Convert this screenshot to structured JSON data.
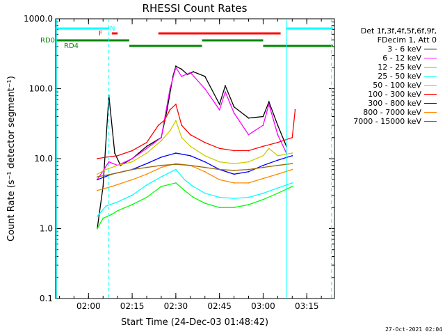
{
  "chart_data": {
    "type": "line",
    "title": "RHESSI Count Rates",
    "xlabel": "Start Time (24-Dec-03 01:48:42)",
    "ylabel": "Count Rate (s⁻¹ detector segment⁻¹)",
    "yscale": "log",
    "ylim": [
      0.1,
      1000
    ],
    "xlim": [
      "01:48:42",
      "03:24:30"
    ],
    "x_ticks": [
      "02:00",
      "02:15",
      "02:30",
      "02:45",
      "03:00",
      "03:15"
    ],
    "y_ticks": [
      "0.1",
      "1.0",
      "10.0",
      "100.0",
      "1000.0"
    ],
    "legend_position": "right, outside plot",
    "legend_header": [
      "Det 1f,3f,4f,5f,6f,9f,",
      "FDecim 1, Att 0"
    ],
    "series": [
      {
        "name": "3 - 6 keV",
        "color": "#000000",
        "x": [
          "02:03",
          "02:05",
          "02:07",
          "02:09",
          "02:11",
          "02:15",
          "02:20",
          "02:25",
          "02:27",
          "02:29",
          "02:30",
          "02:32",
          "02:34",
          "02:36",
          "02:40",
          "02:45",
          "02:47",
          "02:50",
          "02:55",
          "03:00",
          "03:02",
          "03:05",
          "03:08"
        ],
        "y": [
          1.0,
          4,
          80,
          12,
          8,
          10,
          15,
          20,
          50,
          150,
          210,
          190,
          160,
          175,
          150,
          60,
          110,
          55,
          38,
          40,
          65,
          30,
          15
        ]
      },
      {
        "name": "6 - 12 keV",
        "color": "#ff00ff",
        "x": [
          "02:03",
          "02:07",
          "02:10",
          "02:15",
          "02:20",
          "02:25",
          "02:28",
          "02:30",
          "02:32",
          "02:35",
          "02:40",
          "02:45",
          "02:47",
          "02:50",
          "02:55",
          "03:00",
          "03:02",
          "03:05",
          "03:08"
        ],
        "y": [
          5,
          9,
          8,
          10,
          14,
          20,
          100,
          200,
          150,
          170,
          100,
          50,
          90,
          45,
          22,
          30,
          60,
          22,
          12
        ]
      },
      {
        "name": "12 - 25 keV",
        "color": "#00ff00",
        "x": [
          "02:03",
          "02:05",
          "02:08",
          "02:10",
          "02:15",
          "02:20",
          "02:25",
          "02:30",
          "02:33",
          "02:36",
          "02:40",
          "02:45",
          "02:50",
          "02:55",
          "03:00",
          "03:05",
          "03:10"
        ],
        "y": [
          1.0,
          1.4,
          1.6,
          1.8,
          2.2,
          2.8,
          4,
          4.5,
          3.5,
          2.8,
          2.3,
          2.0,
          2.0,
          2.2,
          2.6,
          3.2,
          4
        ]
      },
      {
        "name": "25 - 50 keV",
        "color": "#00ffff",
        "x": [
          "02:03",
          "02:06",
          "02:10",
          "02:15",
          "02:20",
          "02:25",
          "02:30",
          "02:33",
          "02:36",
          "02:40",
          "02:45",
          "02:50",
          "02:55",
          "03:00",
          "03:05",
          "03:10"
        ],
        "y": [
          1.5,
          2.1,
          2.4,
          3,
          4.2,
          5.5,
          7,
          5,
          4,
          3.2,
          2.8,
          2.7,
          2.8,
          3.2,
          3.8,
          4.5
        ]
      },
      {
        "name": "50 - 100 keV",
        "color": "#cccc00",
        "x": [
          "02:03",
          "02:06",
          "02:10",
          "02:15",
          "02:20",
          "02:25",
          "02:28",
          "02:30",
          "02:32",
          "02:35",
          "02:40",
          "02:45",
          "02:50",
          "02:55",
          "03:00",
          "03:02",
          "03:05",
          "03:10"
        ],
        "y": [
          6,
          7,
          8,
          9,
          12,
          18,
          25,
          35,
          20,
          15,
          11,
          9,
          8.5,
          9,
          11,
          14,
          11,
          12
        ]
      },
      {
        "name": "100 - 300 keV",
        "color": "#ff0000",
        "x": [
          "02:03",
          "02:06",
          "02:10",
          "02:15",
          "02:20",
          "02:24",
          "02:26",
          "02:28",
          "02:30",
          "02:32",
          "02:35",
          "02:40",
          "02:45",
          "02:50",
          "02:55",
          "03:00",
          "03:05",
          "03:10",
          "03:11"
        ],
        "y": [
          10,
          10.5,
          11,
          13,
          17,
          30,
          35,
          50,
          60,
          30,
          22,
          17,
          14,
          13,
          13,
          15,
          17,
          20,
          50
        ]
      },
      {
        "name": "300 - 800 keV",
        "color": "#0000ff",
        "x": [
          "02:03",
          "02:08",
          "02:15",
          "02:20",
          "02:25",
          "02:30",
          "02:35",
          "02:40",
          "02:45",
          "02:50",
          "02:55",
          "03:00",
          "03:05",
          "03:10"
        ],
        "y": [
          5,
          6,
          7,
          8.5,
          10.5,
          12,
          11,
          9,
          7,
          6,
          6.5,
          8,
          9.5,
          11
        ]
      },
      {
        "name": "800 - 7000 keV",
        "color": "#ff8800",
        "x": [
          "02:03",
          "02:08",
          "02:15",
          "02:20",
          "02:25",
          "02:30",
          "02:35",
          "02:40",
          "02:45",
          "02:50",
          "02:55",
          "03:00",
          "03:05",
          "03:10"
        ],
        "y": [
          3.5,
          4,
          5,
          6,
          7.5,
          8.5,
          8,
          6.5,
          5,
          4.5,
          4.5,
          5.2,
          6,
          7
        ]
      },
      {
        "name": "7000 - 15000 keV",
        "color": "#996600",
        "x": [
          "02:03",
          "02:08",
          "02:15",
          "02:20",
          "02:25",
          "02:30",
          "02:35",
          "02:40",
          "02:45",
          "02:50",
          "02:55",
          "03:00",
          "03:05",
          "03:10"
        ],
        "y": [
          5.5,
          6,
          7,
          7.5,
          8,
          8.3,
          8,
          7.5,
          7,
          6.8,
          7,
          7.5,
          8,
          8.5
        ]
      }
    ],
    "attenuator_bars": [
      {
        "label": "",
        "color": "#00ffff",
        "segments": [
          [
            "01:48:42",
            "02:07:00"
          ],
          [
            "03:08:00",
            "03:24:00"
          ]
        ]
      },
      {
        "label": "N",
        "color": "#00ffff",
        "segments": []
      },
      {
        "label": "F",
        "color": "#ff0000",
        "segments": [
          [
            "02:08:00",
            "02:10:00"
          ],
          [
            "02:24:00",
            "03:06:00"
          ]
        ]
      },
      {
        "label": "RD0",
        "color": "#008800",
        "segments": [
          [
            "01:48:42",
            "02:14:00"
          ],
          [
            "02:39:00",
            "03:00:00"
          ]
        ]
      },
      {
        "label": "RD4",
        "color": "#008800",
        "segments": [
          [
            "02:14:00",
            "02:39:00"
          ],
          [
            "03:00:00",
            "03:24:00"
          ]
        ]
      }
    ],
    "vertical_lines": {
      "solid": [
        "01:49:00",
        "03:08:00"
      ],
      "dashed": [
        "02:07:00",
        "03:23:30"
      ],
      "color": "#00ffff"
    }
  },
  "footer": "27-Oct-2021 02:04"
}
